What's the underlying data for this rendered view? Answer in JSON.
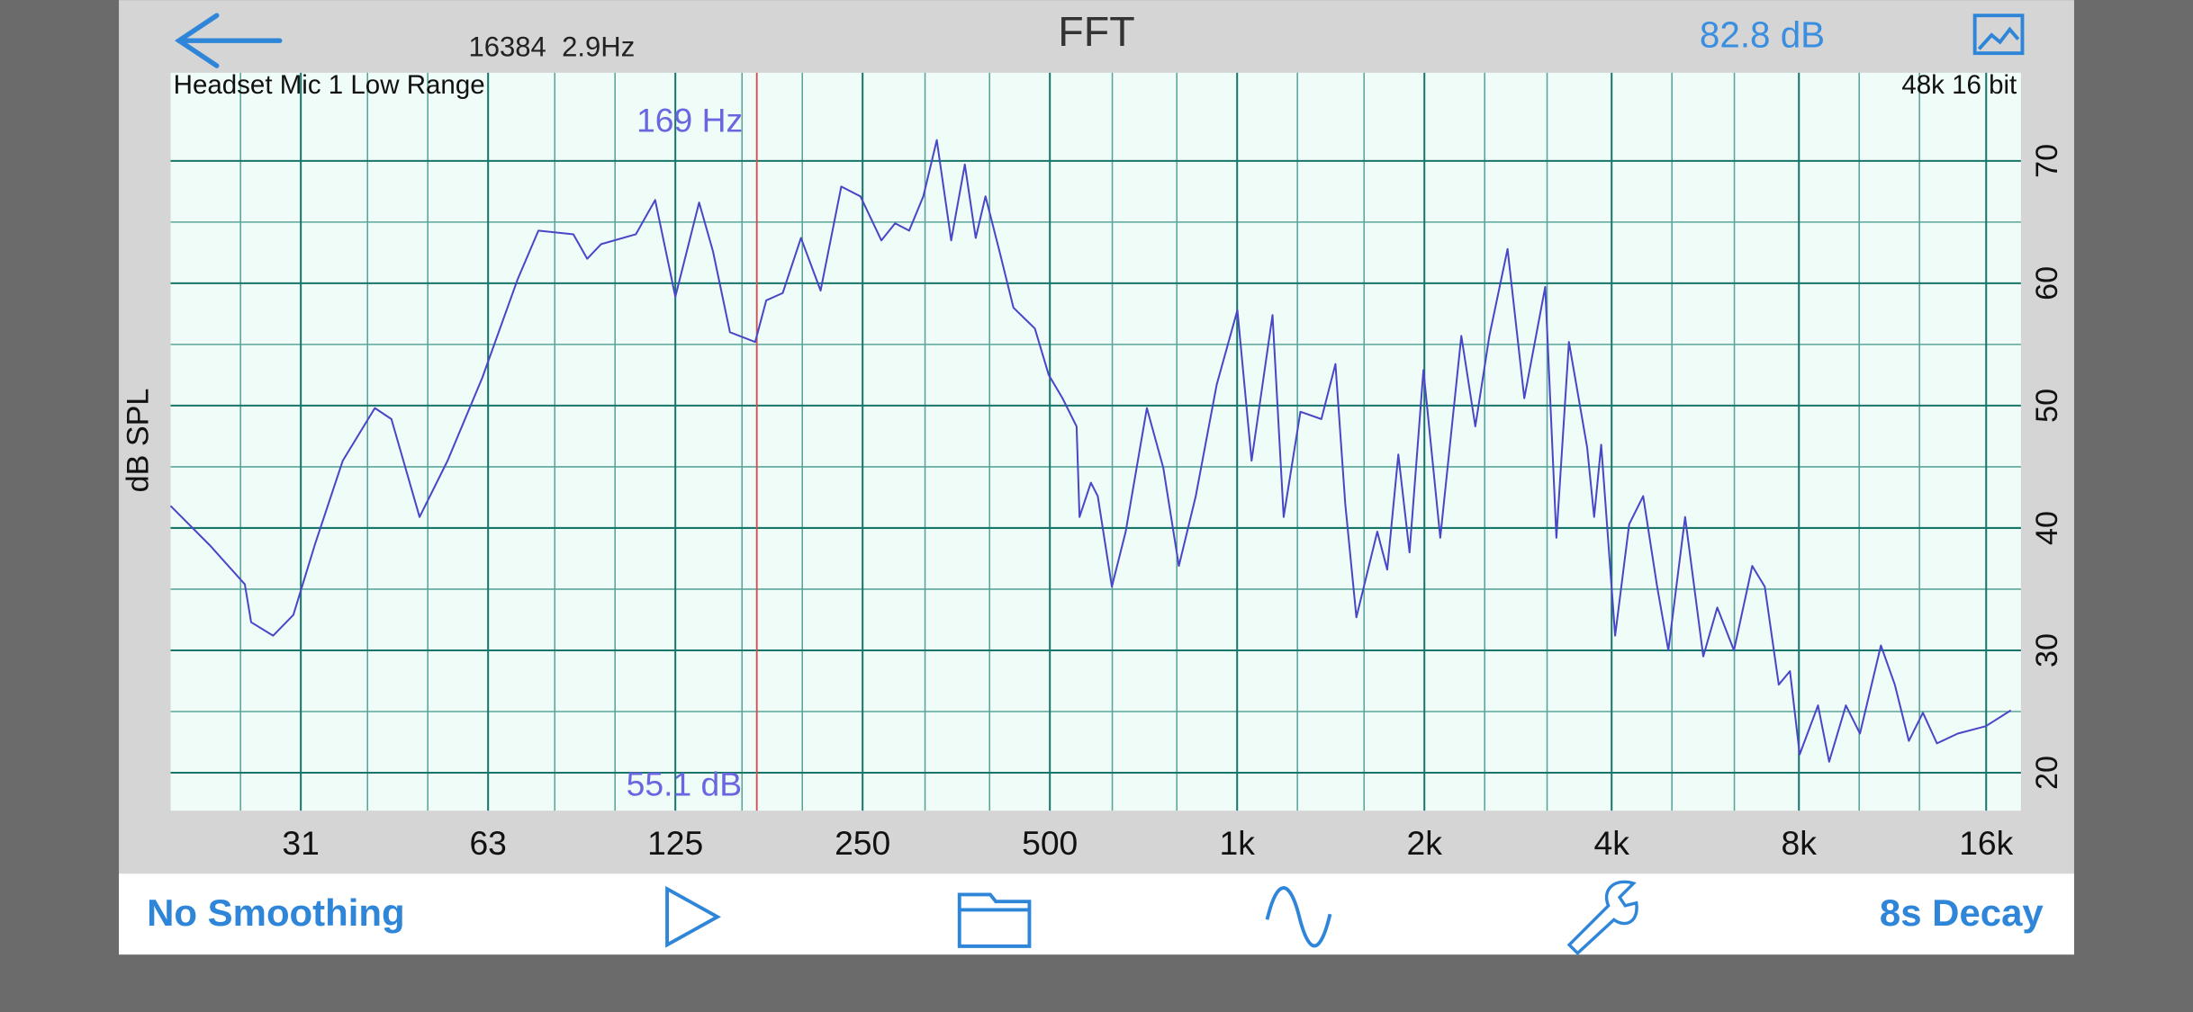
{
  "top_bar": {
    "fft_info": "16384  2.9Hz",
    "title": "FFT",
    "level": "82.8 dB"
  },
  "toolbar": {
    "smoothing": "No Smoothing",
    "decay": "8s Decay"
  },
  "chart_data": {
    "type": "line",
    "log_x": true,
    "source_label": "Headset Mic 1 Low Range",
    "format_label": "48k 16 bit",
    "ylabel": "dB SPL",
    "x": [
      19.3,
      22.3,
      25.4,
      26.0,
      28.2,
      30.4,
      32.9,
      36.5,
      41.1,
      43.7,
      48.5,
      53.8,
      61.2,
      69.7,
      75.3,
      85.7,
      90.2,
      95.0,
      108,
      116,
      125,
      136.5,
      143.7,
      153,
      168,
      175,
      186,
      199,
      214,
      231,
      248,
      268,
      282,
      297,
      313,
      329,
      347,
      365,
      380,
      394,
      415,
      437,
      473,
      498,
      524,
      552,
      558,
      582,
      597,
      629,
      662,
      716,
      761,
      806,
      858,
      927,
      1001,
      1055,
      1140,
      1188,
      1264,
      1366,
      1439,
      1492,
      1555,
      1680,
      1743,
      1816,
      1893,
      1993,
      2121,
      2293,
      2415,
      2544,
      2721,
      2895,
      3128,
      3260,
      3415,
      3653,
      3749,
      3848,
      4052,
      4268,
      4495,
      4734,
      4934,
      5250,
      5615,
      5914,
      6291,
      6731,
      7051,
      7425,
      7740,
      8023,
      8586,
      8948,
      9520,
      10028,
      10838,
      11409,
      12018,
      12660,
      13335,
      14400,
      15975,
      17535
    ],
    "series": [
      {
        "color": "#4a46c8",
        "values": [
          41.8,
          38.6,
          35.4,
          32.3,
          31.2,
          32.9,
          38.6,
          45.5,
          49.8,
          48.9,
          40.9,
          45.5,
          52.3,
          60.3,
          64.3,
          64.0,
          62.0,
          63.2,
          64.0,
          66.8,
          58.9,
          66.6,
          62.6,
          56.0,
          55.2,
          58.6,
          59.2,
          63.7,
          59.4,
          67.9,
          67.1,
          63.5,
          64.9,
          64.3,
          67.1,
          71.7,
          63.5,
          69.7,
          63.7,
          67.1,
          62.6,
          58.0,
          56.3,
          52.5,
          50.6,
          48.3,
          40.9,
          43.7,
          42.6,
          35.2,
          39.7,
          49.8,
          44.9,
          36.9,
          42.6,
          51.7,
          57.8,
          45.5,
          57.4,
          40.9,
          49.5,
          48.9,
          53.4,
          42.0,
          32.7,
          39.7,
          36.6,
          46.0,
          38.0,
          52.9,
          39.2,
          55.7,
          48.3,
          55.7,
          62.8,
          50.6,
          59.7,
          39.2,
          55.2,
          46.6,
          40.9,
          46.8,
          31.2,
          40.3,
          42.6,
          35.2,
          30.0,
          40.9,
          29.5,
          33.5,
          30.0,
          36.9,
          35.2,
          27.2,
          28.3,
          21.5,
          25.5,
          20.9,
          25.5,
          23.2,
          30.4,
          27.2,
          22.6,
          24.9,
          22.4,
          23.2,
          23.8,
          25.1
        ]
      }
    ],
    "xlim": [
      19.3,
      18200
    ],
    "xticks": [
      {
        "value": 31.25,
        "label": "31"
      },
      {
        "value": 62.5,
        "label": "63"
      },
      125,
      250,
      500,
      {
        "value": 1000,
        "label": "1k"
      },
      {
        "value": 2000,
        "label": "2k"
      },
      {
        "value": 4000,
        "label": "4k"
      },
      {
        "value": 8000,
        "label": "8k"
      },
      {
        "value": 16000,
        "label": "16k"
      }
    ],
    "x_minor_ticks": [
      25,
      40,
      50,
      80,
      100,
      160,
      200,
      315,
      400,
      630,
      800,
      1250,
      1600,
      2500,
      3150,
      5000,
      6300,
      10000,
      12500
    ],
    "ylim": [
      16.9,
      77.2
    ],
    "yticks": [
      20,
      30,
      40,
      50,
      60,
      70
    ],
    "y_minor_ticks": [
      25,
      35,
      45,
      55,
      65
    ],
    "grid": true,
    "cursor": {
      "x": 169,
      "color": "#d05050",
      "label": "169 Hz",
      "value_label": "55.1 dB"
    }
  }
}
